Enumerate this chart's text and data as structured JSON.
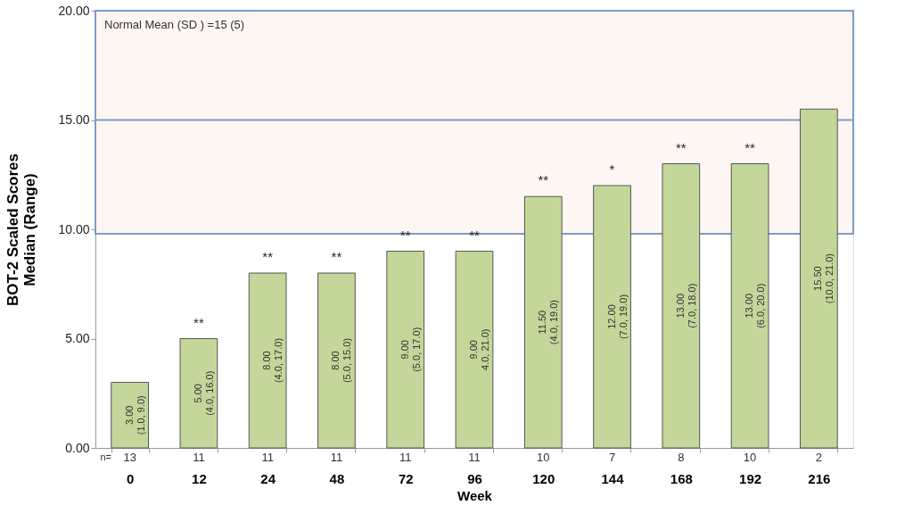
{
  "chart_data": {
    "type": "bar",
    "xlabel": "Week",
    "ylabel": "BOT-2 Scaled Scores\nMedian (Range)",
    "categories": [
      "0",
      "12",
      "24",
      "48",
      "72",
      "96",
      "120",
      "144",
      "168",
      "192",
      "216"
    ],
    "values": [
      3,
      5,
      8,
      8,
      9,
      9,
      11.5,
      12,
      13,
      13,
      15.5
    ],
    "color": "#c4d79b",
    "value_labels": [
      "3.00\n(1.0, 9.0)",
      "5.00\n(4.0, 16.0)",
      "8.00\n(4.0, 17.0)",
      "8.00\n(5.0, 15.0)",
      "9.00\n(5.0, 17.0)",
      "9.00\n4.0, 21.0)",
      "11.50\n(4.0, 19.0)",
      "12.00\n(7.0, 19.0)",
      "13.00\n(7.0, 18.0)",
      "13.00\n(6.0, 20.0)",
      "15.50\n(10.0, 21.0)"
    ],
    "ylim": [
      0,
      20
    ],
    "yticks": [
      {
        "value": 0,
        "label": "0.00"
      },
      {
        "value": 5,
        "label": "5.00"
      },
      {
        "value": 10,
        "label": "10.00"
      },
      {
        "value": 15,
        "label": "15.00"
      },
      {
        "value": 20,
        "label": "20.00"
      }
    ],
    "grid": false,
    "bands": [
      {
        "axis": "y",
        "from": 9.8,
        "to": 20,
        "label": "Normal Mean (SD ) =15 (5)",
        "color": "#fdf6f3"
      }
    ],
    "ref_lines": [
      {
        "axis": "y",
        "value": 15,
        "color": "#7f9cc6"
      }
    ],
    "annotations": [
      "n=",
      "13",
      "11",
      "11",
      "11",
      "11",
      "11",
      "10",
      "7",
      "8",
      "10",
      "2",
      {
        "text": "**",
        "x": "12",
        "y": 5
      },
      {
        "text": "**",
        "x": "24",
        "y": 8
      },
      {
        "text": "**",
        "x": "48",
        "y": 8
      },
      {
        "text": "**",
        "x": "72",
        "y": 9
      },
      {
        "text": "**",
        "x": "96",
        "y": 9
      },
      {
        "text": "**",
        "x": "120",
        "y": 11.5
      },
      {
        "text": "*",
        "x": "144",
        "y": 12
      },
      {
        "text": "**",
        "x": "168",
        "y": 13
      },
      {
        "text": "**",
        "x": "192",
        "y": 13
      }
    ]
  }
}
